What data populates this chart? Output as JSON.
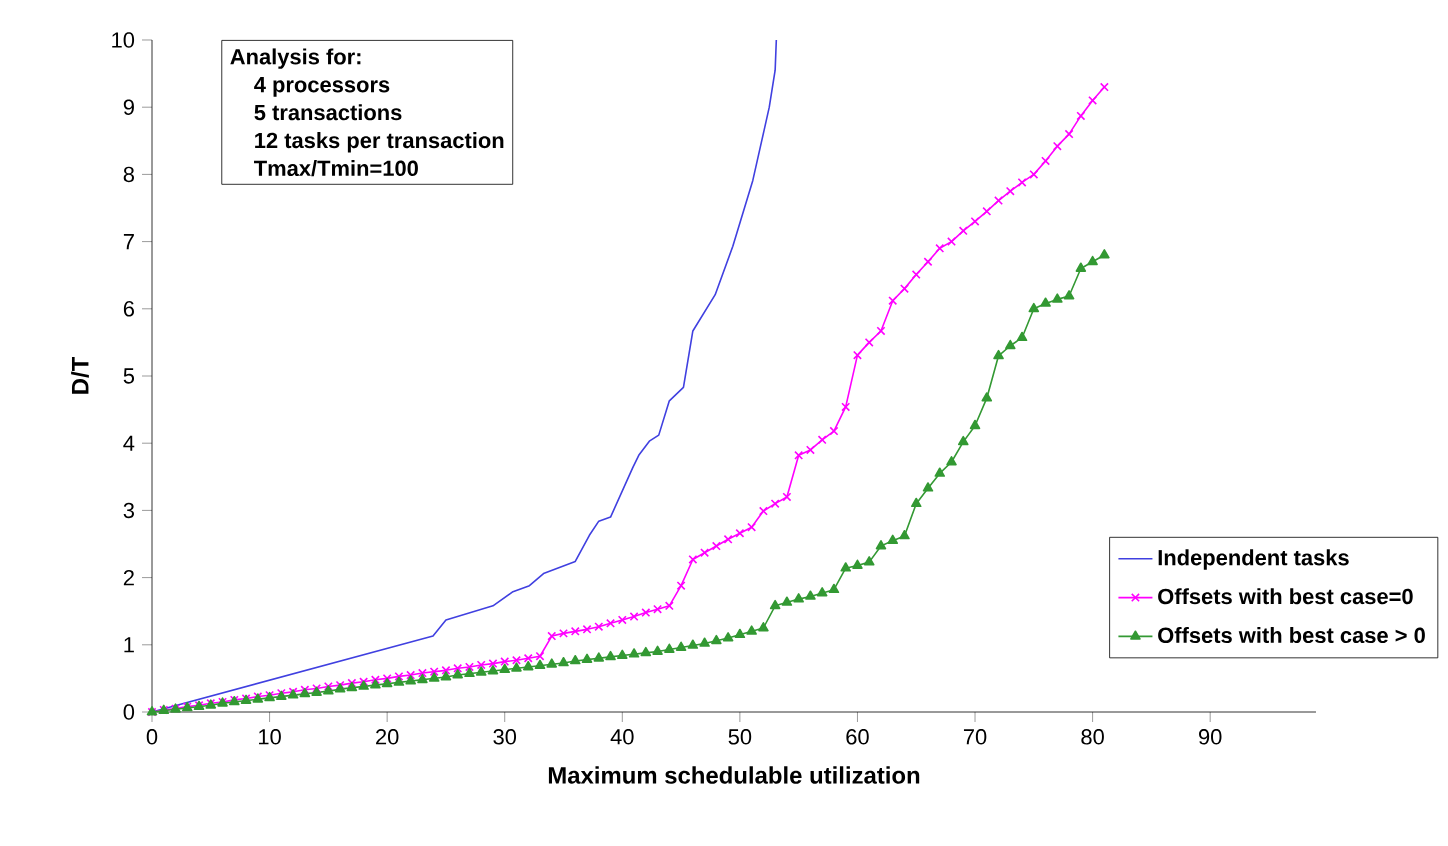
{
  "chart_data": {
    "type": "line",
    "xlabel": "**Maximum schedulable utilization**",
    "ylabel": "**D/T**",
    "annotations": [
      "**Analysis for:**",
      "**4 processors**",
      "**5 transactions**",
      "**12 tasks per transaction**",
      "**Tmax/Tmin=100**"
    ],
    "xlim": [
      0,
      99
    ],
    "xticks": [
      0,
      10,
      20,
      30,
      40,
      50,
      60,
      70,
      80,
      90
    ],
    "ylim": [
      0,
      10
    ],
    "yticks": [
      0,
      1,
      2,
      3,
      4,
      5,
      6,
      7,
      8,
      9,
      10
    ],
    "grid": false,
    "legend": "right",
    "series": [
      {
        "name": "**Independent tasks**",
        "color": "#4040e0",
        "marker": "none",
        "x": [
          0,
          23.9,
          25.0,
          29.0,
          30.7,
          32.1,
          33.3,
          36.0,
          37.2,
          38.0,
          39.0,
          40.9,
          41.4,
          42.3,
          43.1,
          44.0,
          45.2,
          46.0,
          47.9,
          49.4,
          51.1,
          52.5,
          53.0,
          53.1
        ],
        "values": [
          0,
          1.13,
          1.37,
          1.58,
          1.79,
          1.88,
          2.06,
          2.24,
          2.63,
          2.84,
          2.9,
          3.64,
          3.82,
          4.03,
          4.12,
          4.63,
          4.83,
          5.67,
          6.21,
          6.93,
          7.91,
          9.0,
          9.55,
          10
        ]
      },
      {
        "name": "**Offsets with best case=0**",
        "color": "#ff00ff",
        "marker": "cross",
        "x": [
          0,
          1,
          2,
          3,
          4,
          5,
          6,
          7,
          8,
          9,
          10,
          11,
          12,
          13,
          14,
          15,
          16,
          17,
          18,
          19,
          20,
          21,
          22,
          23,
          24,
          25,
          26,
          27,
          28,
          29,
          30,
          31,
          32,
          33,
          34,
          35,
          36,
          37,
          38,
          39,
          40,
          41,
          42,
          43,
          44,
          45,
          46,
          47,
          48,
          49,
          50,
          51,
          52,
          53,
          54,
          55,
          56,
          57,
          58,
          59,
          60,
          61,
          62,
          63,
          64,
          65,
          66,
          67,
          68,
          69,
          70,
          71,
          72,
          73,
          74,
          75,
          76,
          77,
          78,
          79,
          80,
          81
        ],
        "values": [
          0,
          0.03,
          0.05,
          0.08,
          0.1,
          0.13,
          0.15,
          0.18,
          0.2,
          0.23,
          0.25,
          0.28,
          0.3,
          0.33,
          0.35,
          0.38,
          0.4,
          0.43,
          0.45,
          0.48,
          0.5,
          0.53,
          0.55,
          0.58,
          0.6,
          0.62,
          0.65,
          0.67,
          0.7,
          0.72,
          0.75,
          0.77,
          0.8,
          0.83,
          1.13,
          1.17,
          1.2,
          1.23,
          1.27,
          1.32,
          1.37,
          1.42,
          1.48,
          1.53,
          1.58,
          1.88,
          2.27,
          2.37,
          2.47,
          2.57,
          2.66,
          2.75,
          2.99,
          3.1,
          3.2,
          3.82,
          3.9,
          4.05,
          4.18,
          4.54,
          5.31,
          5.5,
          5.67,
          6.12,
          6.3,
          6.51,
          6.7,
          6.9,
          7.0,
          7.16,
          7.3,
          7.45,
          7.61,
          7.75,
          7.88,
          8.0,
          8.2,
          8.42,
          8.6,
          8.87,
          9.1,
          9.3
        ]
      },
      {
        "name": "**Offsets with best case > 0**",
        "color": "#339933",
        "marker": "triangle",
        "x": [
          0,
          1,
          2,
          3,
          4,
          5,
          6,
          7,
          8,
          9,
          10,
          11,
          12,
          13,
          14,
          15,
          16,
          17,
          18,
          19,
          20,
          21,
          22,
          23,
          24,
          25,
          26,
          27,
          28,
          29,
          30,
          31,
          32,
          33,
          34,
          35,
          36,
          37,
          38,
          39,
          40,
          41,
          42,
          43,
          44,
          45,
          46,
          47,
          48,
          49,
          50,
          51,
          52,
          53,
          54,
          55,
          56,
          57,
          58,
          59,
          60,
          61,
          62,
          63,
          64,
          65,
          66,
          67,
          68,
          69,
          70,
          71,
          72,
          73,
          74,
          75,
          76,
          77,
          78,
          79,
          80,
          81
        ],
        "values": [
          0,
          0.02,
          0.04,
          0.06,
          0.08,
          0.1,
          0.13,
          0.15,
          0.17,
          0.19,
          0.21,
          0.23,
          0.25,
          0.27,
          0.29,
          0.31,
          0.34,
          0.36,
          0.38,
          0.4,
          0.42,
          0.44,
          0.46,
          0.48,
          0.5,
          0.52,
          0.55,
          0.57,
          0.59,
          0.61,
          0.63,
          0.65,
          0.67,
          0.69,
          0.71,
          0.73,
          0.76,
          0.78,
          0.8,
          0.82,
          0.84,
          0.86,
          0.88,
          0.9,
          0.93,
          0.96,
          0.99,
          1.02,
          1.06,
          1.1,
          1.15,
          1.2,
          1.25,
          1.58,
          1.63,
          1.68,
          1.72,
          1.77,
          1.82,
          2.14,
          2.18,
          2.23,
          2.47,
          2.55,
          2.62,
          3.1,
          3.33,
          3.55,
          3.72,
          4.02,
          4.26,
          4.67,
          5.3,
          5.45,
          5.57,
          6.0,
          6.08,
          6.14,
          6.19,
          6.6,
          6.7,
          6.8
        ]
      }
    ]
  }
}
